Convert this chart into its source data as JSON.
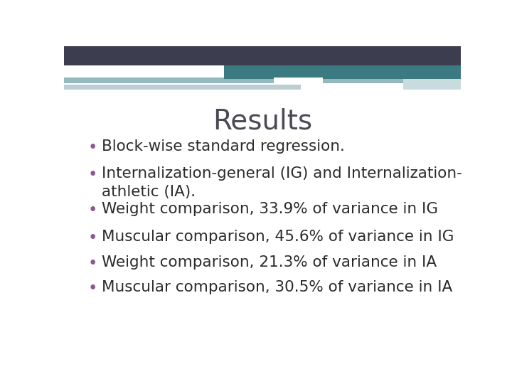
{
  "title": "Results",
  "title_color": "#4A4A55",
  "title_fontsize": 28,
  "bullet_color": "#8B5A8B",
  "text_color": "#2B2B2B",
  "text_fontsize": 15.5,
  "background_color": "#FFFFFF",
  "header_dark_color": "#3D3D50",
  "header_teal_color": "#3A7A80",
  "header_light1_color": "#95B8BE",
  "header_light2_color": "#BACED3",
  "header_white_color": "#FFFFFF",
  "header_accent_color": "#C8DCE0",
  "bullets": [
    "Block-wise standard regression.",
    "Internalization-general (IG) and Internalization-\nathletic (IA).",
    "Weight comparison, 33.9% of variance in IG",
    "Muscular comparison, 45.6% of variance in IG",
    "Weight comparison, 21.3% of variance in IA",
    "Muscular comparison, 30.5% of variance in IA"
  ],
  "bullet_has_wrapped_line": [
    false,
    true,
    false,
    false,
    false,
    false
  ]
}
